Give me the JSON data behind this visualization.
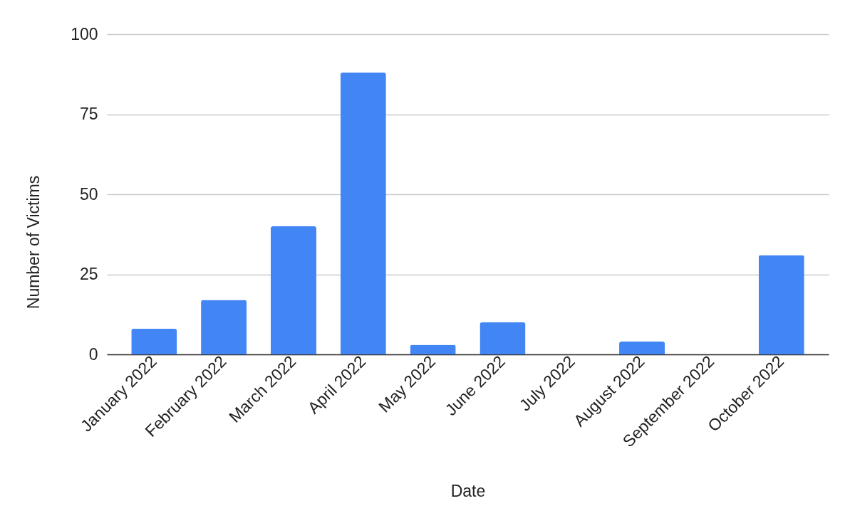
{
  "chart_data": {
    "type": "bar",
    "xlabel": "Date",
    "ylabel": "Number of Victims",
    "categories": [
      "January 2022",
      "February 2022",
      "March 2022",
      "April 2022",
      "May 2022",
      "June 2022",
      "July 2022",
      "August 2022",
      "September 2022",
      "October 2022"
    ],
    "values": [
      8,
      17,
      40,
      88,
      3,
      10,
      0,
      4,
      0,
      31
    ],
    "color": "#4285f4",
    "ylim": [
      0,
      100
    ],
    "yticks": [
      0,
      25,
      50,
      75,
      100
    ],
    "grid": "y"
  }
}
